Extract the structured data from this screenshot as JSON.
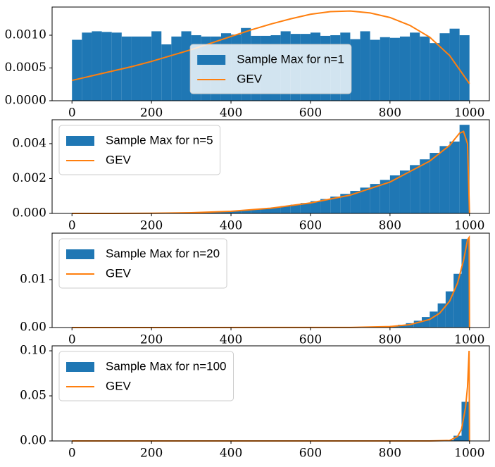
{
  "chart_data": [
    {
      "type": "histogram",
      "legend": "lower center",
      "xlim": [
        -50,
        1050
      ],
      "ylim": [
        0,
        0.00143
      ],
      "xticks": [
        0,
        200,
        400,
        600,
        800,
        1000
      ],
      "yticks": [
        {
          "value": 0,
          "label": "0.0000"
        },
        0.0005,
        {
          "value": 0.001,
          "label": "0.0010"
        }
      ],
      "bins": [
        0,
        25,
        50,
        75,
        100,
        125,
        150,
        175,
        200,
        225,
        250,
        275,
        300,
        325,
        350,
        375,
        400,
        425,
        450,
        475,
        500,
        525,
        550,
        575,
        600,
        625,
        650,
        675,
        700,
        725,
        750,
        775,
        800,
        825,
        850,
        875,
        900,
        925,
        950,
        975,
        1000
      ],
      "series": [
        {
          "name": "Sample Max for n=1",
          "color": "#1f77b4",
          "values": [
            0.00093,
            0.00104,
            0.00106,
            0.00105,
            0.00104,
            0.00098,
            0.00098,
            0.00098,
            0.00106,
            0.00086,
            0.00098,
            0.00106,
            0.001,
            0.00098,
            0.00098,
            0.00103,
            0.00101,
            0.00111,
            0.00099,
            0.00099,
            0.001,
            0.00106,
            0.00102,
            0.00102,
            0.00104,
            0.00099,
            0.001,
            0.00104,
            0.00094,
            0.00106,
            0.00093,
            0.00097,
            0.00096,
            0.00098,
            0.00104,
            0.00098,
            0.00088,
            0.00103,
            0.0011,
            0.001
          ]
        },
        {
          "name": "GEV",
          "color": "#ff7f0e",
          "type": "line",
          "x": [
            0,
            50,
            100,
            150,
            200,
            250,
            300,
            350,
            400,
            450,
            500,
            550,
            600,
            650,
            700,
            750,
            800,
            850,
            900,
            950,
            1000
          ],
          "values": [
            0.00031,
            0.00038,
            0.00045,
            0.00052,
            0.0006,
            0.00069,
            0.00078,
            0.00088,
            0.00098,
            0.00108,
            0.00117,
            0.00125,
            0.00132,
            0.00136,
            0.00137,
            0.00134,
            0.00127,
            0.00115,
            0.00097,
            0.00069,
            0.00026
          ]
        }
      ]
    },
    {
      "type": "histogram",
      "legend": "upper left",
      "xlim": [
        -50,
        1050
      ],
      "ylim": [
        0,
        0.00537
      ],
      "xticks": [
        0,
        200,
        400,
        600,
        800,
        1000
      ],
      "yticks": [
        {
          "value": 0,
          "label": "0.000"
        },
        0.002,
        0.004
      ],
      "bins": [
        0,
        25,
        50,
        75,
        100,
        125,
        150,
        175,
        200,
        225,
        250,
        275,
        300,
        325,
        350,
        375,
        400,
        425,
        450,
        475,
        500,
        525,
        550,
        575,
        600,
        625,
        650,
        675,
        700,
        725,
        750,
        775,
        800,
        825,
        850,
        875,
        900,
        925,
        950,
        975,
        1000
      ],
      "series": [
        {
          "name": "Sample Max for n=5",
          "color": "#1f77b4",
          "values": [
            0,
            0,
            0,
            0,
            0,
            0,
            0,
            6e-06,
            1e-05,
            1.6e-05,
            2.4e-05,
            3.4e-05,
            4.8e-05,
            6.5e-05,
            8.6e-05,
            0.000113,
            0.000145,
            0.000183,
            0.000229,
            0.000282,
            0.000345,
            0.000417,
            0.000501,
            0.000596,
            0.000704,
            0.000826,
            0.000963,
            0.00112,
            0.00129,
            0.00148,
            0.00169,
            0.00192,
            0.00218,
            0.00246,
            0.00277,
            0.0031,
            0.00347,
            0.00386,
            0.00412,
            0.00508
          ]
        },
        {
          "name": "GEV",
          "color": "#ff7f0e",
          "type": "line",
          "x": [
            0,
            100,
            200,
            300,
            400,
            500,
            600,
            700,
            800,
            900,
            950,
            975,
            985,
            995,
            1000
          ],
          "values": [
            0,
            0,
            1e-05,
            4e-05,
            0.00012,
            0.0003,
            0.0006,
            0.00105,
            0.0018,
            0.003,
            0.0039,
            0.0046,
            0.0047,
            0.004,
            0
          ]
        }
      ]
    },
    {
      "type": "histogram",
      "legend": "upper left",
      "xlim": [
        -50,
        1050
      ],
      "ylim": [
        0,
        0.0197
      ],
      "xticks": [
        0,
        200,
        400,
        600,
        800,
        1000
      ],
      "yticks": [
        {
          "value": 0,
          "label": "0.00"
        },
        0.01
      ],
      "bins": [
        0,
        20,
        40,
        60,
        80,
        100,
        120,
        140,
        160,
        180,
        200,
        220,
        240,
        260,
        280,
        300,
        320,
        340,
        360,
        380,
        400,
        420,
        440,
        460,
        480,
        500,
        520,
        540,
        560,
        580,
        600,
        620,
        640,
        660,
        680,
        700,
        720,
        740,
        760,
        780,
        800,
        820,
        840,
        860,
        880,
        900,
        920,
        940,
        960,
        980,
        1000
      ],
      "series": [
        {
          "name": "Sample Max for n=20",
          "color": "#1f77b4",
          "values": [
            0,
            0,
            0,
            0,
            0,
            0,
            0,
            0,
            0,
            0,
            0,
            0,
            0,
            0,
            0,
            0,
            0,
            0,
            0,
            0,
            0,
            0,
            0,
            0,
            0,
            0,
            0,
            0,
            0,
            0,
            0,
            0,
            0,
            1e-05,
            2e-05,
            3e-05,
            5e-05,
            8e-05,
            0.00014,
            0.00023,
            0.00036,
            0.00058,
            0.00091,
            0.00142,
            0.00219,
            0.00333,
            0.00504,
            0.00755,
            0.01121,
            0.0185
          ]
        },
        {
          "name": "GEV",
          "color": "#ff7f0e",
          "type": "line",
          "x": [
            0,
            700,
            800,
            850,
            900,
            925,
            950,
            970,
            985,
            995,
            999,
            1000
          ],
          "values": [
            0,
            2e-05,
            0.0002,
            0.0006,
            0.0017,
            0.003,
            0.0055,
            0.0093,
            0.014,
            0.0183,
            0.0188,
            0
          ]
        }
      ]
    },
    {
      "type": "histogram",
      "legend": "upper left",
      "xlim": [
        -50,
        1050
      ],
      "ylim": [
        0,
        0.1055
      ],
      "xticks": [
        0,
        200,
        400,
        600,
        800,
        1000
      ],
      "yticks": [
        {
          "value": 0,
          "label": "0.00"
        },
        0.05,
        {
          "value": 0.1,
          "label": "0.10"
        }
      ],
      "bins": [
        0,
        20,
        40,
        60,
        80,
        100,
        120,
        140,
        160,
        180,
        200,
        220,
        240,
        260,
        280,
        300,
        320,
        340,
        360,
        380,
        400,
        420,
        440,
        460,
        480,
        500,
        520,
        540,
        560,
        580,
        600,
        620,
        640,
        660,
        680,
        700,
        720,
        740,
        760,
        780,
        800,
        820,
        840,
        860,
        880,
        900,
        920,
        940,
        960,
        980,
        1000
      ],
      "series": [
        {
          "name": "Sample Max for n=100",
          "color": "#1f77b4",
          "values": [
            0,
            0,
            0,
            0,
            0,
            0,
            0,
            0,
            0,
            0,
            0,
            0,
            0,
            0,
            0,
            0,
            0,
            0,
            0,
            0,
            0,
            0,
            0,
            0,
            0,
            0,
            0,
            0,
            0,
            0,
            0,
            0,
            0,
            0,
            0,
            0,
            0,
            0,
            0,
            0,
            0,
            0,
            0,
            0,
            0,
            1e-05,
            9e-05,
            0.00074,
            0.00579,
            0.0434
          ]
        },
        {
          "name": "GEV",
          "color": "#ff7f0e",
          "type": "line",
          "x": [
            0,
            900,
            950,
            970,
            980,
            990,
            995,
            999,
            1000
          ],
          "values": [
            0,
            0,
            0.0005,
            0.005,
            0.013,
            0.037,
            0.06,
            0.1,
            0
          ]
        }
      ]
    }
  ]
}
